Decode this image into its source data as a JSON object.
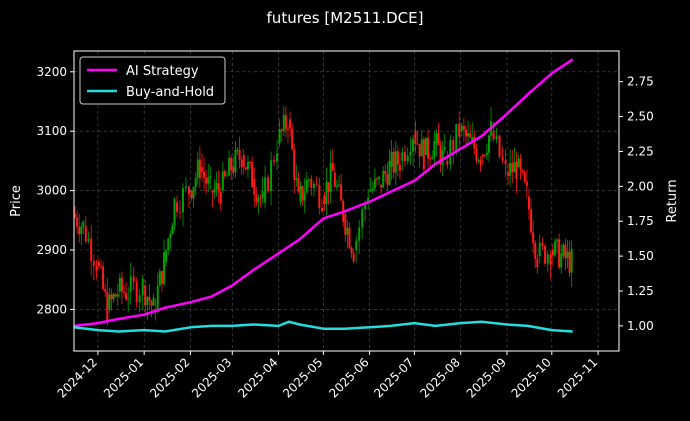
{
  "chart_data": {
    "type": "line",
    "title": "futures [M2511.DCE]",
    "ylabel": "Price",
    "ylabel_right": "Return",
    "xlabel": "",
    "x_range": [
      "2024-11-15",
      "2025-11-15"
    ],
    "ylim": [
      2730,
      3235
    ],
    "ylim_right": [
      0.82,
      2.97
    ],
    "grid": true,
    "legend_position": "top-left",
    "x_ticks": [
      "2024-12",
      "2025-01",
      "2025-02",
      "2025-03",
      "2025-04",
      "2025-05",
      "2025-06",
      "2025-07",
      "2025-08",
      "2025-09",
      "2025-10",
      "2025-11"
    ],
    "y_ticks": [
      2800,
      2900,
      3000,
      3100,
      3200
    ],
    "y_ticks_right": [
      "1.00",
      "1.25",
      "1.50",
      "1.75",
      "2.00",
      "2.25",
      "2.50",
      "2.75"
    ],
    "price_colors": {
      "up": "#00a000",
      "down": "#ff1a1a"
    },
    "price_series": {
      "name": "Price",
      "x": [
        "2024-11-15",
        "2024-11-22",
        "2024-12-01",
        "2024-12-08",
        "2024-12-15",
        "2024-12-22",
        "2025-01-01",
        "2025-01-08",
        "2025-01-15",
        "2025-01-22",
        "2025-02-01",
        "2025-02-08",
        "2025-02-15",
        "2025-02-22",
        "2025-03-01",
        "2025-03-08",
        "2025-03-15",
        "2025-03-22",
        "2025-04-01",
        "2025-04-08",
        "2025-04-15",
        "2025-04-22",
        "2025-05-01",
        "2025-05-08",
        "2025-05-15",
        "2025-05-22",
        "2025-06-01",
        "2025-06-08",
        "2025-06-15",
        "2025-06-22",
        "2025-07-01",
        "2025-07-08",
        "2025-07-15",
        "2025-07-22",
        "2025-08-01",
        "2025-08-08",
        "2025-08-15",
        "2025-08-22",
        "2025-09-01",
        "2025-09-08",
        "2025-09-15",
        "2025-09-22",
        "2025-10-01",
        "2025-10-08",
        "2025-10-15"
      ],
      "values": [
        2960,
        2940,
        2880,
        2800,
        2830,
        2830,
        2840,
        2800,
        2880,
        2980,
        3000,
        3040,
        3000,
        3000,
        3040,
        3060,
        3020,
        2980,
        3080,
        3120,
        2980,
        3020,
        2990,
        3030,
        2960,
        2900,
        3000,
        3010,
        3040,
        3050,
        3100,
        3060,
        3080,
        3050,
        3100,
        3080,
        3060,
        3100,
        3030,
        3040,
        2990,
        2890,
        2900,
        2890,
        2880
      ]
    },
    "series": [
      {
        "name": "AI Strategy",
        "color": "#ff00ff",
        "x": [
          "2024-11-15",
          "2024-12-01",
          "2024-12-15",
          "2025-01-01",
          "2025-01-15",
          "2025-02-01",
          "2025-02-15",
          "2025-03-01",
          "2025-03-15",
          "2025-04-01",
          "2025-04-15",
          "2025-05-01",
          "2025-05-15",
          "2025-06-01",
          "2025-06-15",
          "2025-07-01",
          "2025-07-15",
          "2025-08-01",
          "2025-08-15",
          "2025-09-01",
          "2025-09-15",
          "2025-10-01",
          "2025-10-15"
        ],
        "values": [
          1.0,
          1.02,
          1.05,
          1.08,
          1.13,
          1.17,
          1.21,
          1.29,
          1.4,
          1.52,
          1.62,
          1.77,
          1.82,
          1.89,
          1.96,
          2.04,
          2.16,
          2.27,
          2.36,
          2.52,
          2.66,
          2.81,
          2.91
        ]
      },
      {
        "name": "Buy-and-Hold",
        "color": "#22dddd",
        "x": [
          "2024-11-15",
          "2024-12-01",
          "2024-12-15",
          "2025-01-01",
          "2025-01-15",
          "2025-02-01",
          "2025-02-15",
          "2025-03-01",
          "2025-03-15",
          "2025-04-01",
          "2025-04-08",
          "2025-04-15",
          "2025-05-01",
          "2025-05-15",
          "2025-06-01",
          "2025-06-15",
          "2025-07-01",
          "2025-07-15",
          "2025-08-01",
          "2025-08-15",
          "2025-09-01",
          "2025-09-15",
          "2025-10-01",
          "2025-10-15"
        ],
        "values": [
          0.99,
          0.97,
          0.96,
          0.97,
          0.96,
          0.99,
          1.0,
          1.0,
          1.01,
          1.0,
          1.03,
          1.01,
          0.98,
          0.98,
          0.99,
          1.0,
          1.02,
          1.0,
          1.02,
          1.03,
          1.01,
          1.0,
          0.97,
          0.96
        ]
      }
    ]
  }
}
